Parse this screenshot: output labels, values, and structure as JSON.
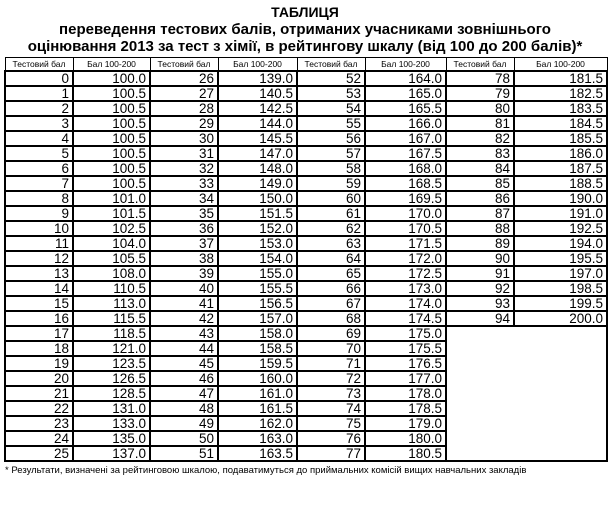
{
  "title": {
    "line1": "ТАБЛИЦЯ",
    "line2": "переведення тестових балів, отриманих учасниками зовнішнього",
    "line3": "оцінювання 2013 за тест з хімії, в рейтингову шкалу (від 100 до 200 балів)*"
  },
  "table": {
    "header_test": "Тестовий бал",
    "header_score": "Бал 100-200",
    "row_count": 26,
    "pairs": [
      [
        [
          "0",
          "100.0"
        ],
        [
          "1",
          "100.5"
        ],
        [
          "2",
          "100.5"
        ],
        [
          "3",
          "100.5"
        ],
        [
          "4",
          "100.5"
        ],
        [
          "5",
          "100.5"
        ],
        [
          "6",
          "100.5"
        ],
        [
          "7",
          "100.5"
        ],
        [
          "8",
          "101.0"
        ],
        [
          "9",
          "101.5"
        ],
        [
          "10",
          "102.5"
        ],
        [
          "11",
          "104.0"
        ],
        [
          "12",
          "105.5"
        ],
        [
          "13",
          "108.0"
        ],
        [
          "14",
          "110.5"
        ],
        [
          "15",
          "113.0"
        ],
        [
          "16",
          "115.5"
        ],
        [
          "17",
          "118.5"
        ],
        [
          "18",
          "121.0"
        ],
        [
          "19",
          "123.5"
        ],
        [
          "20",
          "126.5"
        ],
        [
          "21",
          "128.5"
        ],
        [
          "22",
          "131.0"
        ],
        [
          "23",
          "133.0"
        ],
        [
          "24",
          "135.0"
        ],
        [
          "25",
          "137.0"
        ]
      ],
      [
        [
          "26",
          "139.0"
        ],
        [
          "27",
          "140.5"
        ],
        [
          "28",
          "142.5"
        ],
        [
          "29",
          "144.0"
        ],
        [
          "30",
          "145.5"
        ],
        [
          "31",
          "147.0"
        ],
        [
          "32",
          "148.0"
        ],
        [
          "33",
          "149.0"
        ],
        [
          "34",
          "150.0"
        ],
        [
          "35",
          "151.5"
        ],
        [
          "36",
          "152.0"
        ],
        [
          "37",
          "153.0"
        ],
        [
          "38",
          "154.0"
        ],
        [
          "39",
          "155.0"
        ],
        [
          "40",
          "155.5"
        ],
        [
          "41",
          "156.5"
        ],
        [
          "42",
          "157.0"
        ],
        [
          "43",
          "158.0"
        ],
        [
          "44",
          "158.5"
        ],
        [
          "45",
          "159.5"
        ],
        [
          "46",
          "160.0"
        ],
        [
          "47",
          "161.0"
        ],
        [
          "48",
          "161.5"
        ],
        [
          "49",
          "162.0"
        ],
        [
          "50",
          "163.0"
        ],
        [
          "51",
          "163.5"
        ]
      ],
      [
        [
          "52",
          "164.0"
        ],
        [
          "53",
          "165.0"
        ],
        [
          "54",
          "165.5"
        ],
        [
          "55",
          "166.0"
        ],
        [
          "56",
          "167.0"
        ],
        [
          "57",
          "167.5"
        ],
        [
          "58",
          "168.0"
        ],
        [
          "59",
          "168.5"
        ],
        [
          "60",
          "169.5"
        ],
        [
          "61",
          "170.0"
        ],
        [
          "62",
          "170.5"
        ],
        [
          "63",
          "171.5"
        ],
        [
          "64",
          "172.0"
        ],
        [
          "65",
          "172.5"
        ],
        [
          "66",
          "173.0"
        ],
        [
          "67",
          "174.0"
        ],
        [
          "68",
          "174.5"
        ],
        [
          "69",
          "175.0"
        ],
        [
          "70",
          "175.5"
        ],
        [
          "71",
          "176.5"
        ],
        [
          "72",
          "177.0"
        ],
        [
          "73",
          "178.0"
        ],
        [
          "74",
          "178.5"
        ],
        [
          "75",
          "179.0"
        ],
        [
          "76",
          "180.0"
        ],
        [
          "77",
          "180.5"
        ]
      ],
      [
        [
          "78",
          "181.5"
        ],
        [
          "79",
          "182.5"
        ],
        [
          "80",
          "183.5"
        ],
        [
          "81",
          "184.5"
        ],
        [
          "82",
          "185.5"
        ],
        [
          "83",
          "186.0"
        ],
        [
          "84",
          "187.5"
        ],
        [
          "85",
          "188.5"
        ],
        [
          "86",
          "190.0"
        ],
        [
          "87",
          "191.0"
        ],
        [
          "88",
          "192.5"
        ],
        [
          "89",
          "194.0"
        ],
        [
          "90",
          "195.5"
        ],
        [
          "91",
          "197.0"
        ],
        [
          "92",
          "198.5"
        ],
        [
          "93",
          "199.5"
        ],
        [
          "94",
          "200.0"
        ]
      ]
    ]
  },
  "footnote": "* Результати, визначені за рейтинговою шкалою, подаватимуться до приймальних комісій вищих навчальних закладів",
  "colors": {
    "text": "#000000",
    "background": "#ffffff",
    "border": "#000000"
  }
}
